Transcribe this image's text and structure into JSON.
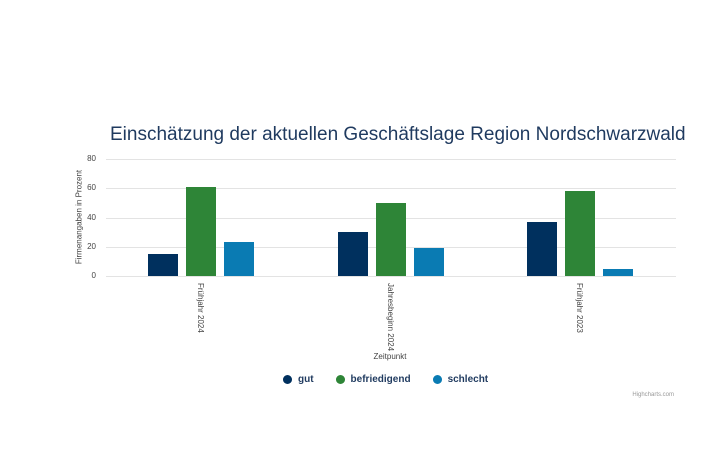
{
  "chart_data": {
    "type": "bar",
    "title": "Einschätzung der aktuellen Geschäftslage Region Nordschwarzwald",
    "xlabel": "Zeitpunkt",
    "ylabel": "Firmenangaben in Prozent",
    "ylim": [
      0,
      80
    ],
    "yticks": [
      0,
      20,
      40,
      60,
      80
    ],
    "grid": true,
    "legend_position": "bottom",
    "categories": [
      "Frühjahr 2024",
      "Jahresbeginn 2024",
      "Frühjahr 2023"
    ],
    "series": [
      {
        "name": "gut",
        "color": "#00305e",
        "values": [
          15,
          30,
          37
        ]
      },
      {
        "name": "befriedigend",
        "color": "#2e8537",
        "values": [
          61,
          50,
          58
        ]
      },
      {
        "name": "schlecht",
        "color": "#0a7bb3",
        "values": [
          23,
          19,
          5
        ]
      }
    ]
  },
  "credit": "Highcharts.com"
}
